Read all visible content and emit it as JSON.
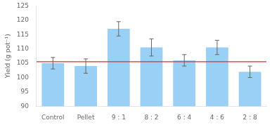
{
  "chart_data": {
    "type": "bar",
    "categories": [
      "Control",
      "Pellet",
      "9 : 1",
      "8 : 2",
      "6 : 4",
      "4 : 6",
      "2 : 8"
    ],
    "values": [
      105.0,
      104.0,
      117.0,
      110.5,
      106.0,
      110.5,
      102.0
    ],
    "errors": [
      2.0,
      2.5,
      2.5,
      3.0,
      2.0,
      2.5,
      2.0
    ],
    "ylabel": "Yield (g pot⁻¹)",
    "ylim": [
      90,
      125
    ],
    "yticks": [
      90,
      95,
      100,
      105,
      110,
      115,
      120,
      125
    ],
    "reference_line": {
      "y": 105.5,
      "color": "#d93030"
    },
    "grid": false
  }
}
